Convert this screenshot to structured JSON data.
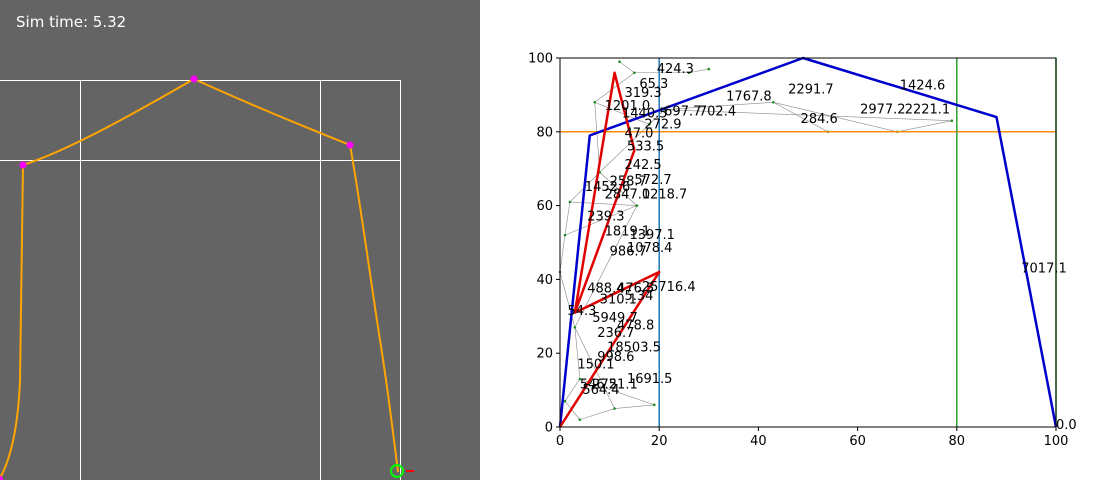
{
  "sim": {
    "time_label": "Sim time: 5.32",
    "colors": {
      "background": "#646464",
      "grid": "#ffffff",
      "curve": "#ffa500",
      "node": "#ff00ff",
      "goal": "#00ff00",
      "goal_tick": "#ff0000"
    }
  },
  "chart_data": {
    "type": "line",
    "xlim": [
      0,
      100
    ],
    "ylim": [
      0,
      100
    ],
    "x_ticks": [
      "0",
      "20",
      "40",
      "60",
      "80",
      "100"
    ],
    "y_ticks": [
      "0",
      "20",
      "40",
      "60",
      "80",
      "100"
    ],
    "reference_lines": {
      "horizontal": [
        {
          "y": 80,
          "color": "#ff8c00"
        }
      ],
      "vertical": [
        {
          "x": 20,
          "color": "#1f77b4"
        },
        {
          "x": 80,
          "color": "#2ca02c"
        },
        {
          "x": 100,
          "color": "#2ca02c"
        }
      ]
    },
    "series": [
      {
        "color": "#0000cc",
        "points": [
          [
            0,
            0
          ],
          [
            6,
            79
          ],
          [
            49,
            100
          ],
          [
            88,
            84
          ],
          [
            100,
            0
          ]
        ]
      },
      {
        "color": "#e00000",
        "points": [
          [
            0,
            0
          ],
          [
            20,
            42
          ],
          [
            3,
            31
          ],
          [
            11,
            96
          ],
          [
            15,
            75
          ],
          [
            3,
            31
          ],
          [
            20,
            42
          ],
          [
            0,
            0
          ]
        ]
      }
    ],
    "annotations": [
      {
        "text": "424.3",
        "x": 19.5,
        "y": 97
      },
      {
        "text": "65.3",
        "x": 16,
        "y": 93
      },
      {
        "text": "319.3",
        "x": 13,
        "y": 90.5
      },
      {
        "text": "1201.0",
        "x": 9,
        "y": 87
      },
      {
        "text": "1767.8",
        "x": 33.5,
        "y": 89.5
      },
      {
        "text": "2291.7",
        "x": 46,
        "y": 91.5
      },
      {
        "text": "1424.6",
        "x": 68.5,
        "y": 92.5
      },
      {
        "text": "1440.5",
        "x": 12.5,
        "y": 85
      },
      {
        "text": "697.7",
        "x": 21,
        "y": 85.5
      },
      {
        "text": "702.4",
        "x": 28,
        "y": 85.5
      },
      {
        "text": "272.9",
        "x": 17,
        "y": 82
      },
      {
        "text": "284.6",
        "x": 48.5,
        "y": 83.5
      },
      {
        "text": "2977.2",
        "x": 60.5,
        "y": 86
      },
      {
        "text": "2221.1",
        "x": 69.5,
        "y": 86
      },
      {
        "text": "47.0",
        "x": 13,
        "y": 79.5
      },
      {
        "text": "533.5",
        "x": 13.5,
        "y": 76
      },
      {
        "text": "242.5",
        "x": 13,
        "y": 71
      },
      {
        "text": "258.7",
        "x": 10,
        "y": 66.5
      },
      {
        "text": "572.7",
        "x": 15,
        "y": 67
      },
      {
        "text": "1452.6",
        "x": 5,
        "y": 65
      },
      {
        "text": "2847.0",
        "x": 9,
        "y": 63
      },
      {
        "text": "1218.7",
        "x": 16.5,
        "y": 63
      },
      {
        "text": "239.3",
        "x": 5.5,
        "y": 57
      },
      {
        "text": "1819.1",
        "x": 9,
        "y": 53
      },
      {
        "text": "1397.1",
        "x": 14,
        "y": 52
      },
      {
        "text": "1078.4",
        "x": 13.5,
        "y": 48.5
      },
      {
        "text": "986.7",
        "x": 10,
        "y": 47.5
      },
      {
        "text": "488.4",
        "x": 5.5,
        "y": 37.5
      },
      {
        "text": "476.5",
        "x": 11.5,
        "y": 37.5
      },
      {
        "text": "25716.4",
        "x": 16.5,
        "y": 38
      },
      {
        "text": "5.34",
        "x": 13,
        "y": 35.5
      },
      {
        "text": "310.1",
        "x": 8,
        "y": 34.5
      },
      {
        "text": "54.3",
        "x": 1.5,
        "y": 31.5
      },
      {
        "text": "5949.7",
        "x": 6.5,
        "y": 29.5
      },
      {
        "text": "478.8",
        "x": 11.5,
        "y": 27.5
      },
      {
        "text": "236.7",
        "x": 7.5,
        "y": 25.5
      },
      {
        "text": "18503.5",
        "x": 9.5,
        "y": 21.5
      },
      {
        "text": "998.6",
        "x": 7.5,
        "y": 19
      },
      {
        "text": "150.1",
        "x": 3.5,
        "y": 17
      },
      {
        "text": "1691.5",
        "x": 13.5,
        "y": 13
      },
      {
        "text": "546.2",
        "x": 4,
        "y": 11.5
      },
      {
        "text": "2751.1",
        "x": 6.5,
        "y": 11.5
      },
      {
        "text": "564.4",
        "x": 4.5,
        "y": 10
      },
      {
        "text": "7017.1",
        "x": 93,
        "y": 43
      },
      {
        "text": "0.0",
        "x": 100,
        "y": 0.5
      }
    ]
  }
}
